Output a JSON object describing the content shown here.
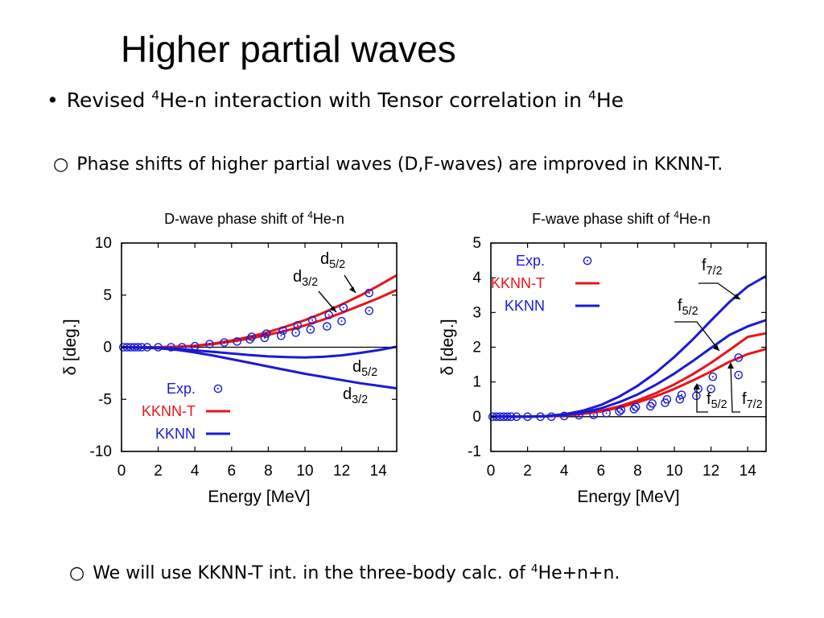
{
  "slide": {
    "title": "Higher partial waves",
    "bullet_main": {
      "symbol": "•",
      "parts": [
        "Revised ",
        "4",
        "He-n interaction with Tensor correlation in ",
        "4",
        "He"
      ]
    },
    "bullet_sub1": {
      "symbol": "○",
      "text": "Phase shifts of higher partial waves (D,F-waves) are improved in KKNN-T."
    },
    "bullet_sub2": {
      "symbol": "○",
      "parts": [
        "We will use KKNN-T int. in the three-body calc. of ",
        "4",
        "He+n+n."
      ]
    }
  },
  "colors": {
    "kknn_t": "#e8141b",
    "kknn": "#1a1ad4",
    "exp": "#1a1ad4",
    "axis": "#000000"
  },
  "chart_data": [
    {
      "type": "line",
      "title_parts": [
        "D-wave phase shift of ",
        "4",
        "He-n"
      ],
      "xlabel": "Energy [MeV]",
      "ylabel": "δ [deg.]",
      "xlim": [
        0,
        15
      ],
      "ylim": [
        -10,
        10
      ],
      "xticks": [
        "0",
        "2",
        "4",
        "6",
        "8",
        "10",
        "12",
        "14"
      ],
      "yticks": [
        "10",
        "5",
        "0",
        "-5",
        "-10"
      ],
      "legend": [
        "Exp.",
        "KKNN-T",
        "KKNN"
      ],
      "legend_position": "bottom-left",
      "series": [
        {
          "name": "KKNN-T",
          "label": "d5/2",
          "x": [
            0,
            2,
            3,
            4,
            5,
            6,
            7,
            8,
            9,
            10,
            11,
            12,
            13,
            14,
            15
          ],
          "y": [
            0,
            0,
            0.05,
            0.15,
            0.35,
            0.65,
            1.0,
            1.45,
            2.0,
            2.6,
            3.3,
            4.1,
            4.95,
            5.9,
            6.9
          ]
        },
        {
          "name": "KKNN-T",
          "label": "d3/2",
          "x": [
            0,
            2,
            3,
            4,
            5,
            6,
            7,
            8,
            9,
            10,
            11,
            12,
            13,
            14,
            15
          ],
          "y": [
            0,
            0,
            0.04,
            0.12,
            0.3,
            0.55,
            0.85,
            1.2,
            1.6,
            2.1,
            2.65,
            3.3,
            4.0,
            4.7,
            5.5
          ]
        },
        {
          "name": "KKNN",
          "label": "d5/2",
          "x": [
            0,
            2,
            3,
            4,
            5,
            6,
            7,
            8,
            9,
            10,
            11,
            12,
            13,
            14,
            15
          ],
          "y": [
            0,
            -0.05,
            -0.15,
            -0.3,
            -0.45,
            -0.6,
            -0.75,
            -0.88,
            -0.95,
            -0.98,
            -0.92,
            -0.78,
            -0.55,
            -0.28,
            0.05
          ]
        },
        {
          "name": "KKNN",
          "label": "d3/2",
          "x": [
            0,
            2,
            3,
            4,
            5,
            6,
            7,
            8,
            9,
            10,
            11,
            12,
            13,
            14,
            15
          ],
          "y": [
            0,
            -0.1,
            -0.25,
            -0.5,
            -0.8,
            -1.15,
            -1.5,
            -1.85,
            -2.2,
            -2.55,
            -2.85,
            -3.15,
            -3.45,
            -3.7,
            -3.95
          ]
        }
      ],
      "exp_points": [
        {
          "x": 0.1,
          "y": 0
        },
        {
          "x": 0.3,
          "y": 0
        },
        {
          "x": 0.5,
          "y": 0
        },
        {
          "x": 0.7,
          "y": 0
        },
        {
          "x": 0.9,
          "y": 0
        },
        {
          "x": 1.1,
          "y": 0
        },
        {
          "x": 1.4,
          "y": 0
        },
        {
          "x": 2.0,
          "y": 0
        },
        {
          "x": 2.7,
          "y": 0
        },
        {
          "x": 3.3,
          "y": 0
        },
        {
          "x": 4.0,
          "y": 0.1
        },
        {
          "x": 4.8,
          "y": 0.3
        },
        {
          "x": 5.6,
          "y": 0.45
        },
        {
          "x": 6.3,
          "y": 0.55
        },
        {
          "x": 7.0,
          "y": 0.75
        },
        {
          "x": 7.1,
          "y": 1.0
        },
        {
          "x": 7.8,
          "y": 0.9
        },
        {
          "x": 7.9,
          "y": 1.3
        },
        {
          "x": 8.7,
          "y": 1.1
        },
        {
          "x": 8.8,
          "y": 1.6
        },
        {
          "x": 9.5,
          "y": 1.4
        },
        {
          "x": 9.6,
          "y": 2.1
        },
        {
          "x": 10.3,
          "y": 1.7
        },
        {
          "x": 10.4,
          "y": 2.6
        },
        {
          "x": 11.2,
          "y": 2.0
        },
        {
          "x": 11.3,
          "y": 3.1
        },
        {
          "x": 12.0,
          "y": 2.5
        },
        {
          "x": 12.1,
          "y": 3.8
        },
        {
          "x": 13.5,
          "y": 3.5
        },
        {
          "x": 13.5,
          "y": 5.2
        }
      ],
      "annotations": [
        {
          "base": "d",
          "sub": "5/2"
        },
        {
          "base": "d",
          "sub": "3/2"
        },
        {
          "base": "d",
          "sub": "5/2"
        },
        {
          "base": "d",
          "sub": "3/2"
        }
      ]
    },
    {
      "type": "line",
      "title_parts": [
        "F-wave phase shift of ",
        "4",
        "He-n"
      ],
      "xlabel": "Energy [MeV]",
      "ylabel": "δ [deg.]",
      "xlim": [
        0,
        15
      ],
      "ylim": [
        -1,
        5
      ],
      "xticks": [
        "0",
        "2",
        "4",
        "6",
        "8",
        "10",
        "12",
        "14"
      ],
      "yticks": [
        "5",
        "4",
        "3",
        "2",
        "1",
        "0",
        "-1"
      ],
      "legend": [
        "Exp.",
        "KKNN-T",
        "KKNN"
      ],
      "legend_position": "top-left",
      "series": [
        {
          "name": "KKNN-T",
          "label": "f7/2",
          "x": [
            0,
            2,
            3,
            4,
            5,
            6,
            7,
            8,
            9,
            10,
            11,
            12,
            13,
            14,
            15
          ],
          "y": [
            0,
            0,
            0.01,
            0.04,
            0.09,
            0.17,
            0.3,
            0.47,
            0.68,
            0.93,
            1.22,
            1.55,
            1.92,
            2.3,
            2.4
          ]
        },
        {
          "name": "KKNN-T",
          "label": "f5/2",
          "x": [
            0,
            2,
            3,
            4,
            5,
            6,
            7,
            8,
            9,
            10,
            11,
            12,
            13,
            14,
            15
          ],
          "y": [
            0,
            0,
            0.01,
            0.03,
            0.08,
            0.15,
            0.26,
            0.41,
            0.59,
            0.8,
            1.04,
            1.3,
            1.58,
            1.8,
            1.95
          ]
        },
        {
          "name": "KKNN",
          "label": "f7/2",
          "x": [
            0,
            2,
            3,
            4,
            5,
            6,
            7,
            8,
            9,
            10,
            11,
            12,
            13,
            14,
            15
          ],
          "y": [
            0,
            0,
            0.02,
            0.07,
            0.17,
            0.34,
            0.58,
            0.89,
            1.27,
            1.72,
            2.22,
            2.77,
            3.3,
            3.75,
            4.05
          ]
        },
        {
          "name": "KKNN",
          "label": "f5/2",
          "x": [
            0,
            2,
            3,
            4,
            5,
            6,
            7,
            8,
            9,
            10,
            11,
            12,
            13,
            14,
            15
          ],
          "y": [
            0,
            0,
            0.01,
            0.05,
            0.12,
            0.24,
            0.42,
            0.64,
            0.92,
            1.24,
            1.6,
            1.98,
            2.35,
            2.6,
            2.78
          ]
        }
      ],
      "exp_points": [
        {
          "x": 0.1,
          "y": 0
        },
        {
          "x": 0.3,
          "y": 0
        },
        {
          "x": 0.5,
          "y": 0
        },
        {
          "x": 0.7,
          "y": 0
        },
        {
          "x": 0.9,
          "y": 0
        },
        {
          "x": 1.1,
          "y": 0
        },
        {
          "x": 1.4,
          "y": 0
        },
        {
          "x": 2.0,
          "y": 0
        },
        {
          "x": 2.7,
          "y": 0
        },
        {
          "x": 3.3,
          "y": 0
        },
        {
          "x": 4.0,
          "y": 0.02
        },
        {
          "x": 4.8,
          "y": 0.04
        },
        {
          "x": 5.6,
          "y": 0.05
        },
        {
          "x": 6.3,
          "y": 0.1
        },
        {
          "x": 7.0,
          "y": 0.15
        },
        {
          "x": 7.1,
          "y": 0.2
        },
        {
          "x": 7.8,
          "y": 0.22
        },
        {
          "x": 7.9,
          "y": 0.28
        },
        {
          "x": 8.7,
          "y": 0.3
        },
        {
          "x": 8.8,
          "y": 0.38
        },
        {
          "x": 9.5,
          "y": 0.4
        },
        {
          "x": 9.6,
          "y": 0.5
        },
        {
          "x": 10.3,
          "y": 0.5
        },
        {
          "x": 10.4,
          "y": 0.63
        },
        {
          "x": 11.2,
          "y": 0.6
        },
        {
          "x": 11.3,
          "y": 0.8
        },
        {
          "x": 12.0,
          "y": 0.8
        },
        {
          "x": 12.1,
          "y": 1.15
        },
        {
          "x": 13.5,
          "y": 1.2
        },
        {
          "x": 13.5,
          "y": 1.7
        }
      ],
      "annotations": [
        {
          "base": "f",
          "sub": "7/2"
        },
        {
          "base": "f",
          "sub": "5/2"
        },
        {
          "base": "f",
          "sub": "5/2"
        },
        {
          "base": "f",
          "sub": "7/2"
        }
      ]
    }
  ]
}
